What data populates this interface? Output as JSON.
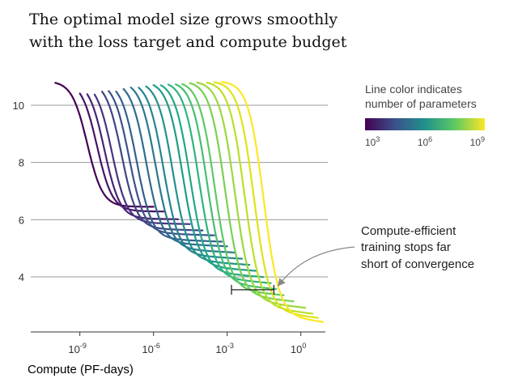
{
  "title_line1": "The optimal model size grows smoothly",
  "title_line2": "with the loss target and compute budget",
  "chart_data": {
    "type": "line",
    "title": "The optimal model size grows smoothly with the loss target and compute budget",
    "xlabel": "Compute (PF-days)",
    "ylabel": "",
    "x_scale": "log",
    "x_ticks": [
      {
        "base": "10",
        "exp": "-9",
        "value": 1e-09
      },
      {
        "base": "10",
        "exp": "-6",
        "value": 1e-06
      },
      {
        "base": "10",
        "exp": "-3",
        "value": 0.001
      },
      {
        "base": "10",
        "exp": "0",
        "value": 1
      }
    ],
    "y_ticks": [
      {
        "label": "10",
        "value": 10
      },
      {
        "label": "8",
        "value": 8
      },
      {
        "label": "6",
        "value": 6
      },
      {
        "label": "4",
        "value": 4
      }
    ],
    "xlim": [
      1e-11,
      10.0
    ],
    "ylim": [
      2.1,
      11.2
    ],
    "grid": "horizontal",
    "initial_loss": 10.85,
    "series": [
      {
        "params": 1000.0,
        "start": 1e-10,
        "drop": 2e-09,
        "end": 1e-06,
        "plateau": 6.45,
        "color": "#440154"
      },
      {
        "params": 3000.0,
        "start": 1e-09,
        "drop": 5e-09,
        "end": 3e-06,
        "plateau": 6.3,
        "color": "#471365"
      },
      {
        "params": 10000.0,
        "start": 2e-09,
        "drop": 1e-08,
        "end": 1e-05,
        "plateau": 6.05,
        "color": "#482475"
      },
      {
        "params": 30000.0,
        "start": 4e-09,
        "drop": 2e-08,
        "end": 3e-05,
        "plateau": 5.9,
        "color": "#463480"
      },
      {
        "params": 100000.0,
        "start": 8e-09,
        "drop": 5e-08,
        "end": 0.0001,
        "plateau": 5.7,
        "color": "#414487"
      },
      {
        "params": 300000.0,
        "start": 1.5e-08,
        "drop": 1e-07,
        "end": 0.0003,
        "plateau": 5.55,
        "color": "#3b528b"
      },
      {
        "params": 1000000.0,
        "start": 3e-08,
        "drop": 2e-07,
        "end": 0.0006,
        "plateau": 5.35,
        "color": "#355f8d"
      },
      {
        "params": 3000000.0,
        "start": 6e-08,
        "drop": 5e-07,
        "end": 0.001,
        "plateau": 5.2,
        "color": "#2f6c8e"
      },
      {
        "params": 10000000.0,
        "start": 1.2e-07,
        "drop": 1.2e-06,
        "end": 0.002,
        "plateau": 5.0,
        "color": "#2a788e"
      },
      {
        "params": 30000000.0,
        "start": 2.5e-07,
        "drop": 2.5e-06,
        "end": 0.004,
        "plateau": 4.8,
        "color": "#25848e"
      },
      {
        "params": 100000000.0,
        "start": 5e-07,
        "drop": 6e-06,
        "end": 0.008,
        "plateau": 4.6,
        "color": "#21918c"
      },
      {
        "params": 300000000.0,
        "start": 1e-06,
        "drop": 1.5e-05,
        "end": 0.015,
        "plateau": 4.4,
        "color": "#1e9c89"
      },
      {
        "params": 1000000000.0,
        "start": 2e-06,
        "drop": 3e-05,
        "end": 0.03,
        "plateau": 4.2,
        "color": "#22a884"
      },
      {
        "params": 3000000000.0,
        "start": 4e-06,
        "drop": 7e-05,
        "end": 0.06,
        "plateau": 4.0,
        "color": "#2fb47c"
      },
      {
        "params": 10000000000.0,
        "start": 8e-06,
        "drop": 0.00015,
        "end": 0.1,
        "plateau": 3.8,
        "color": "#44bf70"
      },
      {
        "params": 30000000000.0,
        "start": 1.5e-05,
        "drop": 0.0003,
        "end": 0.2,
        "plateau": 3.6,
        "color": "#5ec962"
      },
      {
        "params": 100000000000.0,
        "start": 3e-05,
        "drop": 0.0008,
        "end": 0.5,
        "plateau": 3.4,
        "color": "#7ad151"
      },
      {
        "params": 300000000000.0,
        "start": 6e-05,
        "drop": 0.002,
        "end": 1.5,
        "plateau": 3.2,
        "color": "#9bd93c"
      },
      {
        "params": 1000000000000.0,
        "start": 0.00015,
        "drop": 0.005,
        "end": 3,
        "plateau": 3.0,
        "color": "#bddf26"
      },
      {
        "params": 3000000000000.0,
        "start": 0.0003,
        "drop": 0.012,
        "end": 5,
        "plateau": 2.85,
        "color": "#dfe318"
      },
      {
        "params": 10000000000000.0,
        "start": 0.0006,
        "drop": 0.03,
        "end": 8,
        "plateau": 2.7,
        "color": "#fde725"
      }
    ],
    "frontier_bracket": {
      "x_min": 0.0015,
      "x_max": 0.08,
      "y": 3.55
    }
  },
  "legend": {
    "title_line1": "Line color indicates",
    "title_line2": "number of parameters",
    "ticks": [
      {
        "base": "10",
        "exp": "3"
      },
      {
        "base": "10",
        "exp": "6"
      },
      {
        "base": "10",
        "exp": "9"
      }
    ],
    "colors": [
      "#440154",
      "#3b528b",
      "#21918c",
      "#5ec962",
      "#fde725"
    ]
  },
  "annotation": {
    "line1": "Compute-efficient",
    "line2": "training stops far",
    "line3": "short of convergence"
  }
}
